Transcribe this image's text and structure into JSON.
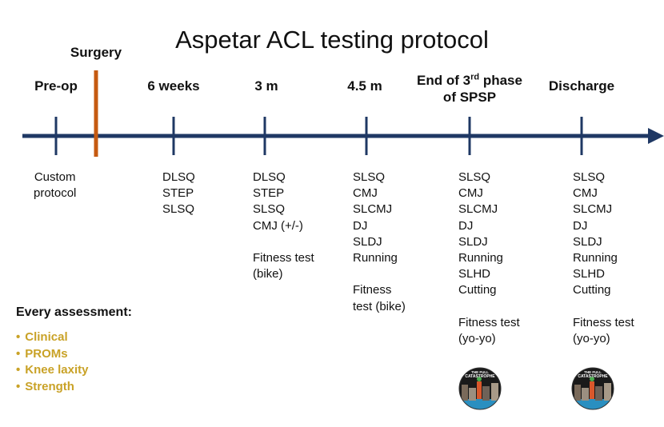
{
  "title": "Aspetar ACL testing protocol",
  "surgery_label": "Surgery",
  "colors": {
    "timeline": "#1f3864",
    "surgery_marker": "#c55a11",
    "assessment_list": "#c9a227"
  },
  "phases": [
    {
      "id": "preop",
      "label": "Pre-op",
      "tests": [
        "Custom",
        "protocol"
      ]
    },
    {
      "id": "6weeks",
      "label": "6 weeks",
      "tests": [
        "DLSQ",
        "STEP",
        "SLSQ"
      ]
    },
    {
      "id": "3m",
      "label": "3 m",
      "tests": [
        "DLSQ",
        "STEP",
        "SLSQ",
        "CMJ (+/-)",
        "",
        "Fitness test",
        "(bike)"
      ]
    },
    {
      "id": "45m",
      "label": "4.5 m",
      "tests": [
        "SLSQ",
        "CMJ",
        "SLCMJ",
        "DJ",
        "SLDJ",
        "Running",
        "",
        "Fitness",
        "test (bike)"
      ]
    },
    {
      "id": "end3rd",
      "label_line1": "End of 3",
      "label_sup": "rd",
      "label_line1_tail": " phase",
      "label_line2": "of SPSP",
      "tests": [
        "SLSQ",
        "CMJ",
        "SLCMJ",
        "DJ",
        "SLDJ",
        "Running",
        "SLHD",
        "Cutting",
        "",
        "Fitness test",
        "(yo-yo)"
      ]
    },
    {
      "id": "discharge",
      "label": "Discharge",
      "tests": [
        "SLSQ",
        "CMJ",
        "SLCMJ",
        "DJ",
        "SLDJ",
        "Running",
        "SLHD",
        "Cutting",
        "",
        "Fitness test",
        "(yo-yo)"
      ]
    }
  ],
  "every_assessment": {
    "title": "Every assessment:",
    "items": [
      "Clinical",
      "PROMs",
      "Knee laxity",
      "Strength"
    ]
  },
  "badge_text": [
    "THE FULL",
    "CATASTROPHE"
  ]
}
